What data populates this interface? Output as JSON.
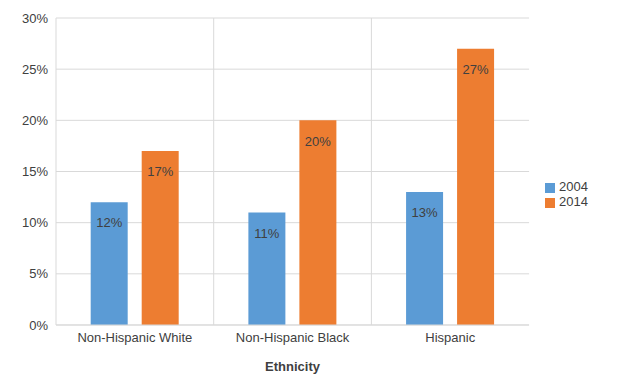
{
  "chart_data": {
    "type": "bar",
    "x_label": "Ethnicity",
    "categories": [
      "Non-Hispanic White",
      "Non-Hispanic Black",
      "Hispanic"
    ],
    "series": [
      {
        "name": "2004",
        "color": "#5b9bd5",
        "values": [
          12,
          11,
          13
        ],
        "value_labels": [
          "12%",
          "11%",
          "13%"
        ]
      },
      {
        "name": "2014",
        "color": "#ed7d31",
        "values": [
          17,
          20,
          27
        ],
        "value_labels": [
          "17%",
          "20%",
          "27%"
        ]
      }
    ],
    "ylim": [
      0,
      30
    ],
    "yticks": [
      {
        "value": 0,
        "label": "0%"
      },
      {
        "value": 5,
        "label": "5%"
      },
      {
        "value": 10,
        "label": "10%"
      },
      {
        "value": 15,
        "label": "15%"
      },
      {
        "value": 20,
        "label": "20%"
      },
      {
        "value": 25,
        "label": "25%"
      },
      {
        "value": 30,
        "label": "30%"
      }
    ],
    "grid": true,
    "legend": "right",
    "data_labels": true
  }
}
